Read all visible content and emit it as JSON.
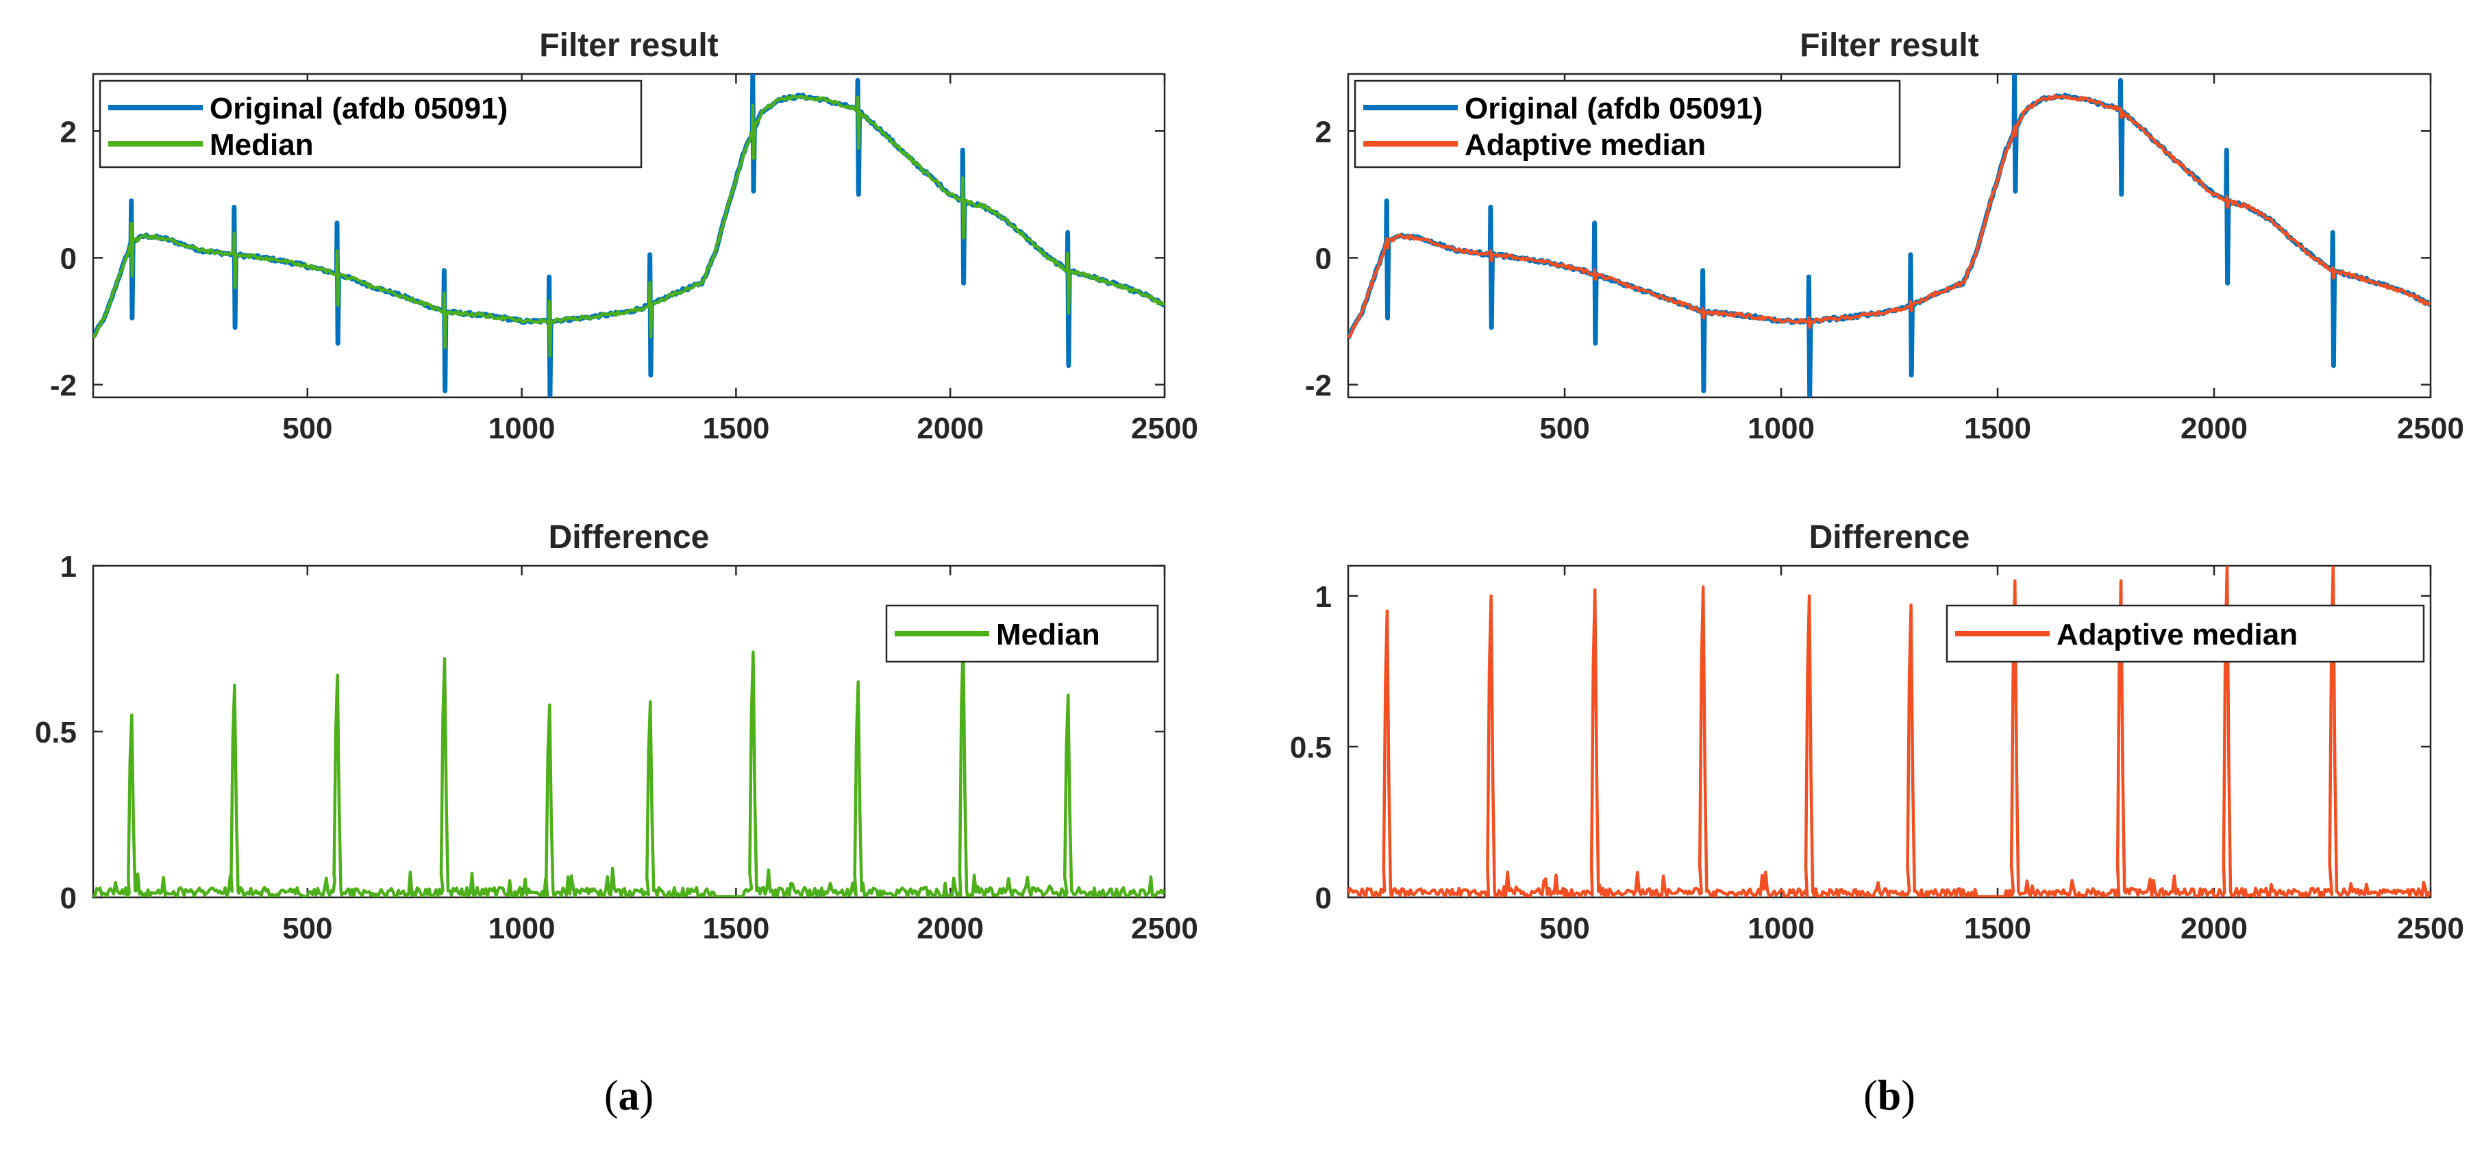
{
  "colors": {
    "original": "#0072bd",
    "median": "#4daf1a",
    "adaptive": "#f25022",
    "axis": "#262626"
  },
  "panels": [
    {
      "caption_letter": "a"
    },
    {
      "caption_letter": "b"
    }
  ],
  "chart_data": [
    {
      "type": "line",
      "panel": "a",
      "position": "top",
      "title": "Filter result",
      "xlabel": "",
      "ylabel": "",
      "xlim": [
        0,
        2500
      ],
      "ylim": [
        -2.2,
        2.9
      ],
      "xticks": [
        500,
        1000,
        1500,
        2000,
        2500
      ],
      "yticks": [
        -2,
        0,
        2
      ],
      "legend_position": "top-left",
      "beats": [
        90,
        330,
        570,
        820,
        1065,
        1300,
        1540,
        1785,
        2030,
        2275
      ],
      "baseline_x": [
        0,
        30,
        60,
        90,
        120,
        170,
        250,
        330,
        400,
        480,
        570,
        650,
        720,
        820,
        900,
        960,
        1000,
        1065,
        1140,
        1200,
        1250,
        1300,
        1360,
        1420,
        1450,
        1480,
        1520,
        1560,
        1600,
        1650,
        1700,
        1780,
        1840,
        1900,
        1950,
        2000,
        2030,
        2080,
        2130,
        2180,
        2230,
        2275,
        2330,
        2400,
        2460,
        2500
      ],
      "baseline_y": [
        -1.25,
        -0.9,
        -0.3,
        0.25,
        0.35,
        0.3,
        0.12,
        0.05,
        0.0,
        -0.1,
        -0.25,
        -0.45,
        -0.6,
        -0.85,
        -0.9,
        -0.95,
        -1.0,
        -1.0,
        -0.95,
        -0.9,
        -0.85,
        -0.75,
        -0.55,
        -0.4,
        0.05,
        0.8,
        1.7,
        2.3,
        2.5,
        2.55,
        2.5,
        2.35,
        2.0,
        1.6,
        1.3,
        1.0,
        0.9,
        0.8,
        0.6,
        0.3,
        0.0,
        -0.2,
        -0.3,
        -0.45,
        -0.6,
        -0.75
      ],
      "series": [
        {
          "name": "Original (afdb 05091)",
          "role": "original",
          "spike_up": [
            0.9,
            0.8,
            0.55,
            -0.2,
            -0.3,
            0.05,
            2.9,
            2.8,
            1.7,
            0.4
          ],
          "spike_down": [
            -0.95,
            -1.1,
            -1.35,
            -2.1,
            -2.2,
            -1.85,
            1.05,
            1.0,
            -0.4,
            -1.7
          ]
        },
        {
          "name": "Median",
          "role": "filtered",
          "color_key": "median",
          "spike_frac": 0.45
        }
      ]
    },
    {
      "type": "line",
      "panel": "a",
      "position": "bottom",
      "title": "Difference",
      "xlabel": "",
      "ylabel": "",
      "xlim": [
        0,
        2500
      ],
      "ylim": [
        0,
        1.0
      ],
      "xticks": [
        500,
        1000,
        1500,
        2000,
        2500
      ],
      "yticks": [
        0,
        0.5,
        1
      ],
      "ytick_labels": [
        "0",
        "0.5",
        "1"
      ],
      "legend_position": "top-right",
      "beats": [
        90,
        330,
        570,
        820,
        1065,
        1300,
        1540,
        1785,
        2030,
        2275
      ],
      "series": [
        {
          "name": "Median",
          "color_key": "median",
          "peaks": [
            0.55,
            0.64,
            0.67,
            0.72,
            0.58,
            0.59,
            0.74,
            0.65,
            0.78,
            0.61
          ],
          "noise_level": 0.03
        }
      ]
    },
    {
      "type": "line",
      "panel": "b",
      "position": "top",
      "title": "Filter result",
      "xlabel": "",
      "ylabel": "",
      "xlim": [
        0,
        2500
      ],
      "ylim": [
        -2.2,
        2.9
      ],
      "xticks": [
        500,
        1000,
        1500,
        2000,
        2500
      ],
      "yticks": [
        -2,
        0,
        2
      ],
      "legend_position": "top-left",
      "beats": [
        90,
        330,
        570,
        820,
        1065,
        1300,
        1540,
        1785,
        2030,
        2275
      ],
      "baseline_x": [
        0,
        30,
        60,
        90,
        120,
        170,
        250,
        330,
        400,
        480,
        570,
        650,
        720,
        820,
        900,
        960,
        1000,
        1065,
        1140,
        1200,
        1250,
        1300,
        1360,
        1420,
        1450,
        1480,
        1520,
        1560,
        1600,
        1650,
        1700,
        1780,
        1840,
        1900,
        1950,
        2000,
        2030,
        2080,
        2130,
        2180,
        2230,
        2275,
        2330,
        2400,
        2460,
        2500
      ],
      "baseline_y": [
        -1.25,
        -0.9,
        -0.3,
        0.25,
        0.35,
        0.3,
        0.12,
        0.05,
        0.0,
        -0.1,
        -0.25,
        -0.45,
        -0.6,
        -0.85,
        -0.9,
        -0.95,
        -1.0,
        -1.0,
        -0.95,
        -0.9,
        -0.85,
        -0.75,
        -0.55,
        -0.4,
        0.05,
        0.8,
        1.7,
        2.3,
        2.5,
        2.55,
        2.5,
        2.35,
        2.0,
        1.6,
        1.3,
        1.0,
        0.9,
        0.8,
        0.6,
        0.3,
        0.0,
        -0.2,
        -0.3,
        -0.45,
        -0.6,
        -0.75
      ],
      "series": [
        {
          "name": "Original (afdb 05091)",
          "role": "original",
          "spike_up": [
            0.9,
            0.8,
            0.55,
            -0.2,
            -0.3,
            0.05,
            2.9,
            2.8,
            1.7,
            0.4
          ],
          "spike_down": [
            -0.95,
            -1.1,
            -1.35,
            -2.1,
            -2.2,
            -1.85,
            1.05,
            1.0,
            -0.4,
            -1.7
          ]
        },
        {
          "name": "Adaptive median",
          "role": "filtered",
          "color_key": "adaptive",
          "spike_frac": 0.08
        }
      ]
    },
    {
      "type": "line",
      "panel": "b",
      "position": "bottom",
      "title": "Difference",
      "xlabel": "",
      "ylabel": "",
      "xlim": [
        0,
        2500
      ],
      "ylim": [
        0,
        1.1
      ],
      "xticks": [
        500,
        1000,
        1500,
        2000,
        2500
      ],
      "yticks": [
        0,
        0.5,
        1
      ],
      "ytick_labels": [
        "0",
        "0.5",
        "1"
      ],
      "legend_position": "top-right",
      "beats": [
        90,
        330,
        570,
        820,
        1065,
        1300,
        1540,
        1785,
        2030,
        2275
      ],
      "series": [
        {
          "name": "Adaptive median",
          "color_key": "adaptive",
          "peaks": [
            0.95,
            1.0,
            1.02,
            1.03,
            1.0,
            0.97,
            1.05,
            1.05,
            1.1,
            1.1
          ],
          "noise_level": 0.03
        }
      ]
    }
  ]
}
